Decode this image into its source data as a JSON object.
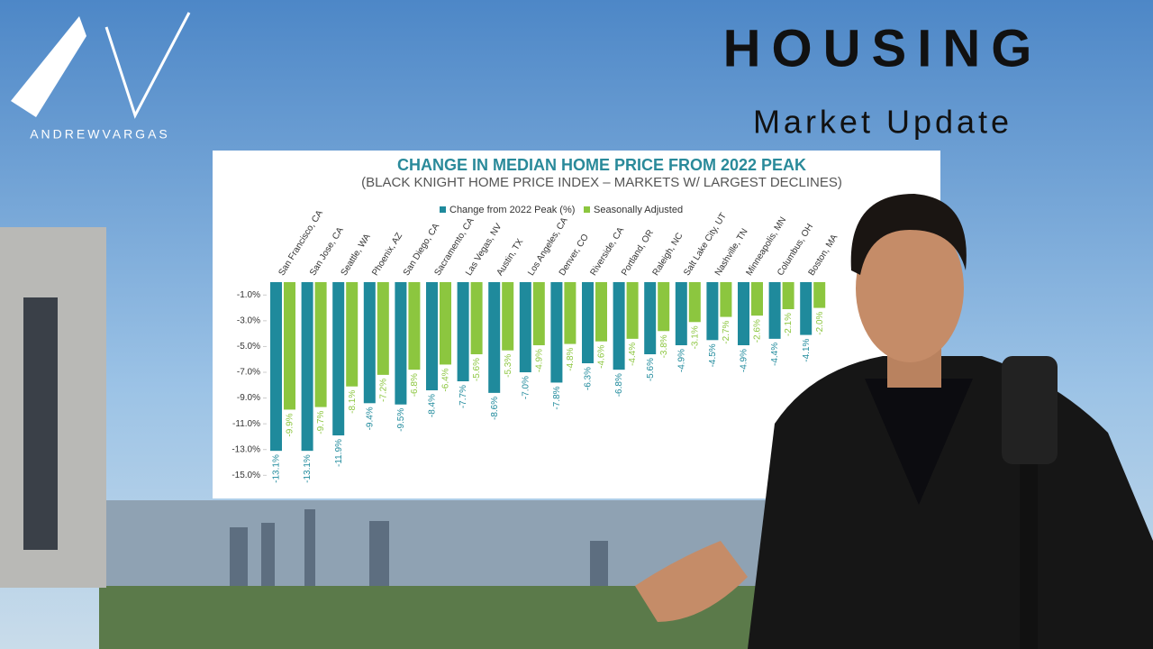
{
  "brand": {
    "name": "ANDREWVARGAS"
  },
  "headline": {
    "title": "HOUSING",
    "subtitle": "Market Update"
  },
  "chart_data": {
    "type": "bar",
    "title": "CHANGE IN MEDIAN HOME PRICE FROM 2022 PEAK",
    "subtitle": "(BLACK KNIGHT HOME PRICE INDEX – MARKETS W/ LARGEST DECLINES)",
    "categories": [
      "San Francisco, CA",
      "San Jose, CA",
      "Seattle, WA",
      "Phoenix, AZ",
      "San Diego, CA",
      "Sacramento, CA",
      "Las Vegas, NV",
      "Austin, TX",
      "Los Angeles, CA",
      "Denver, CO",
      "Riverside, CA",
      "Portland, OR",
      "Raleigh, NC",
      "Salt Lake City, UT",
      "Nashville, TN",
      "Minneapolis, MN",
      "Columbus, OH",
      "Boston, MA"
    ],
    "series": [
      {
        "name": "Change from 2022 Peak (%)",
        "color": "#1f8a9c",
        "values": [
          -13.1,
          -13.1,
          -11.9,
          -9.4,
          -9.5,
          -8.4,
          -7.7,
          -8.6,
          -7.0,
          -7.8,
          -6.3,
          -6.8,
          -5.6,
          -4.9,
          -4.5,
          -4.9,
          -4.4,
          -4.1
        ],
        "value_labels": [
          "-13.1%",
          "-13.1%",
          "-11.9%",
          "-9.4%",
          "-9.5%",
          "-8.4%",
          "-7.7%",
          "-8.6%",
          "-7.0%",
          "-7.8%",
          "-6.3%",
          "-6.8%",
          "-5.6%",
          "-4.9%",
          "-4.5%",
          "-4.9%",
          "-4.4%",
          "-4.1%"
        ]
      },
      {
        "name": "Seasonally Adjusted",
        "color": "#8cc63f",
        "values": [
          -9.9,
          -9.7,
          -8.1,
          -7.2,
          -6.8,
          -6.4,
          -5.6,
          -5.3,
          -4.9,
          -4.8,
          -4.6,
          -4.4,
          -3.8,
          -3.1,
          -2.7,
          -2.6,
          -2.1,
          -2.0
        ],
        "value_labels": [
          "-9.9%",
          "-9.7%",
          "-8.1%",
          "-7.2%",
          "-6.8%",
          "-6.4%",
          "-5.6%",
          "-5.3%",
          "-4.9%",
          "-4.8%",
          "-4.6%",
          "-4.4%",
          "-3.8%",
          "-3.1%",
          "-2.7%",
          "-2.6%",
          "-2.1%",
          "-2.0%"
        ]
      }
    ],
    "ylim": [
      0,
      -16
    ],
    "yticks": [
      {
        "value": -1,
        "label": "-1.0%"
      },
      {
        "value": -3,
        "label": "-3.0%"
      },
      {
        "value": -5,
        "label": "-5.0%"
      },
      {
        "value": -7,
        "label": "-7.0%"
      },
      {
        "value": -9,
        "label": "-9.0%"
      },
      {
        "value": -11,
        "label": "-11.0%"
      },
      {
        "value": -13,
        "label": "-13.0%"
      },
      {
        "value": -15,
        "label": "-15.0%"
      }
    ],
    "grid": false
  }
}
